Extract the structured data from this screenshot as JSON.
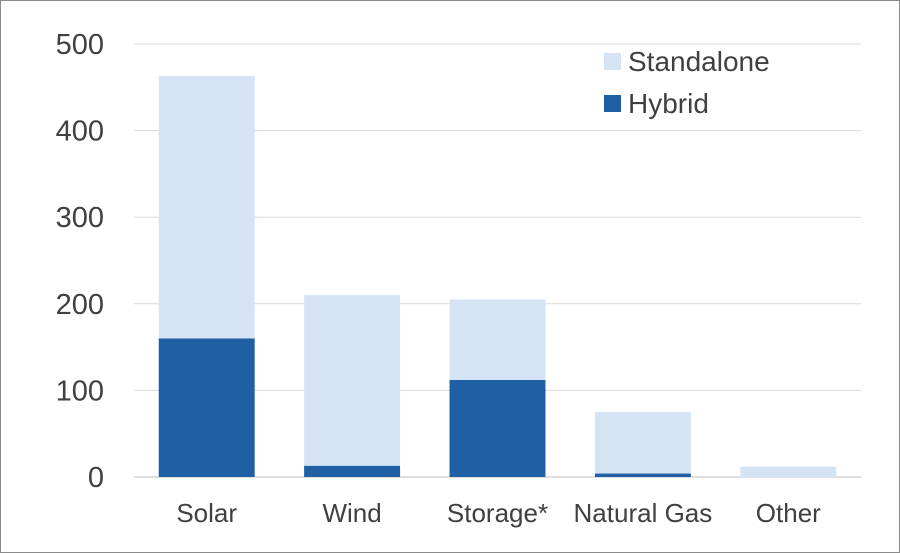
{
  "chart_data": {
    "type": "bar",
    "stacked": true,
    "categories": [
      "Solar",
      "Wind",
      "Storage*",
      "Natural Gas",
      "Other"
    ],
    "series": [
      {
        "name": "Hybrid",
        "color": "#1f5fa3",
        "values": [
          160,
          13,
          112,
          4,
          0
        ]
      },
      {
        "name": "Standalone",
        "color": "#d5e4f5",
        "values": [
          303,
          197,
          93,
          71,
          12
        ]
      }
    ],
    "ylim": [
      0,
      500
    ],
    "yticks": [
      "0",
      "100",
      "200",
      "300",
      "400",
      "500"
    ],
    "grid": true,
    "legend": {
      "position": "top-right",
      "order": [
        "Standalone",
        "Hybrid"
      ]
    }
  }
}
